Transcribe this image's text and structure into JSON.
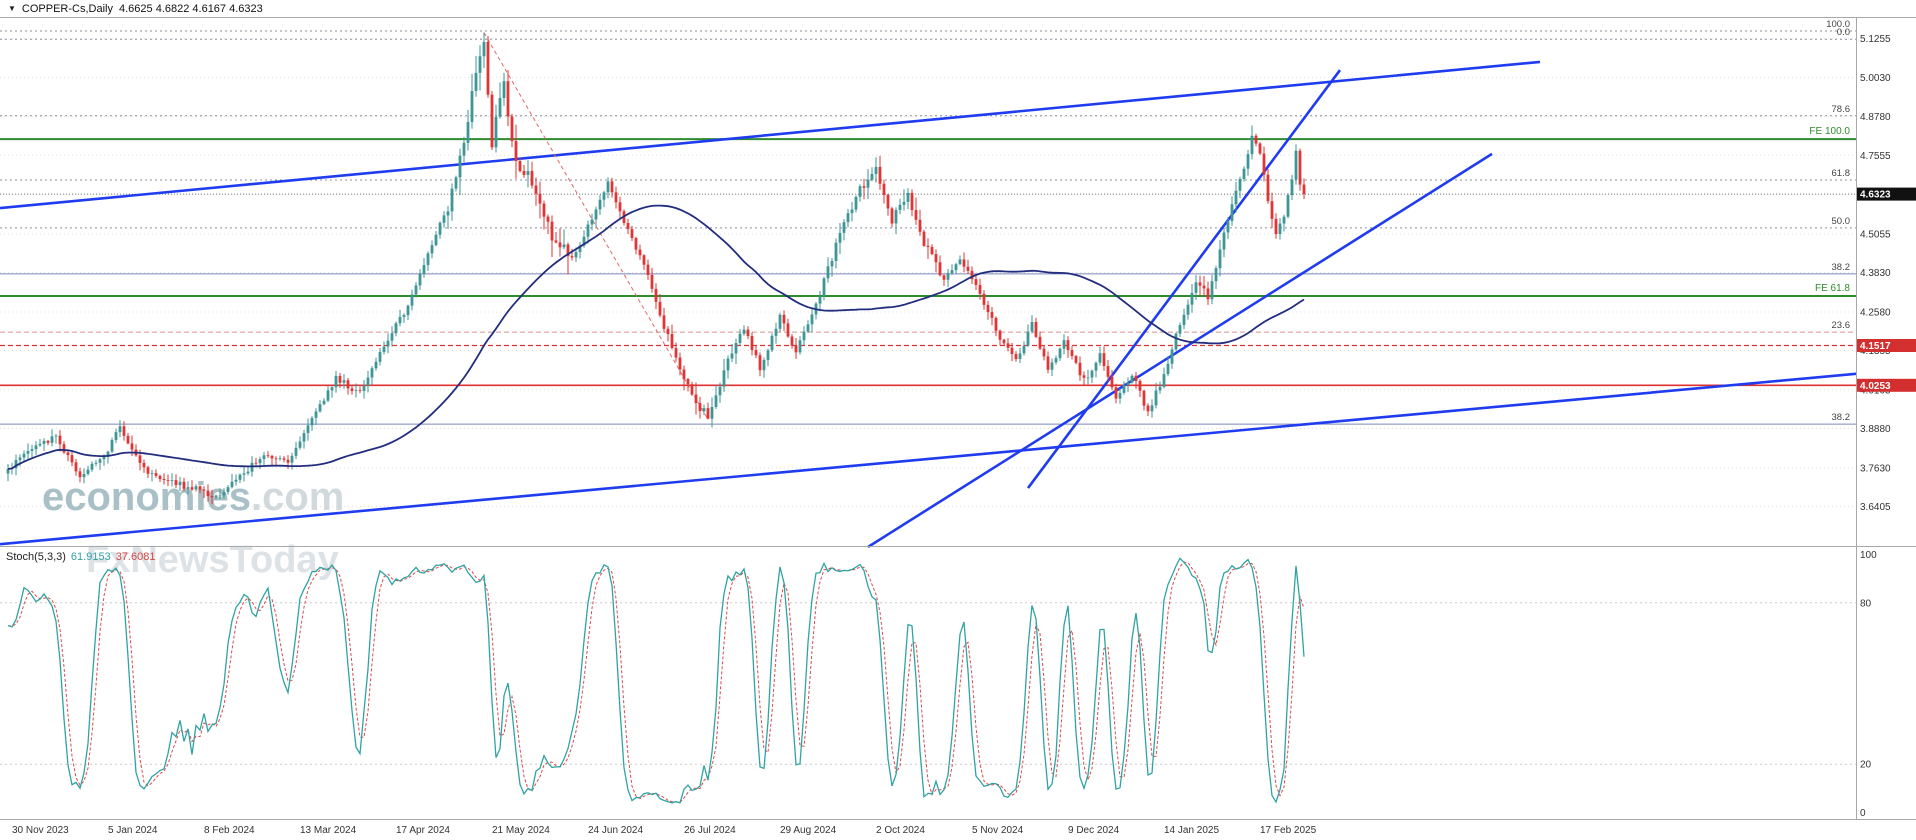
{
  "topbar": {
    "dropdown_icon": "▼",
    "symbol": "COPPER-Cs,Daily",
    "ohlc": "4.6625 4.6822 4.6167 4.6323"
  },
  "watermark": {
    "brand": "economies",
    "brand_suffix": ".com",
    "subbrand": "FxNewsToday"
  },
  "indicator_label": {
    "name": "Stoch(5,3,3)",
    "main_value": "61.9153",
    "signal_value": "37.6081"
  },
  "colors": {
    "candle_up": "#3f9696",
    "candle_down": "#e03535",
    "ma": "#232d7e",
    "trend": "#1f3cf0",
    "fib_trend": "#e06a6a",
    "green_level": "#2e8b2e",
    "red_level": "#e03030",
    "stoch_main": "#2fa3a3",
    "stoch_signal": "#e04848",
    "badge_black": "#111111",
    "badge_red": "#d32f2f",
    "grid": "#e0e0e0",
    "axis_text": "#333333",
    "separator": "#a8a8a8"
  },
  "chart_data": {
    "type": "candlestick",
    "symbol": "COPPER-Cs",
    "timeframe": "Daily",
    "last_quote": {
      "open": 4.6625,
      "high": 4.6822,
      "low": 4.6167,
      "close": 4.6323
    },
    "bars_total": 325,
    "price_axis": {
      "labels": [
        "5.1255",
        "5.0030",
        "4.8780",
        "4.7555",
        "4.6305",
        "4.5055",
        "4.3830",
        "4.2580",
        "4.1355",
        "4.0105",
        "3.8880",
        "3.7630",
        "3.6405"
      ],
      "min": 3.52,
      "max": 5.19
    },
    "time_axis": {
      "labels": [
        "30 Nov 2023",
        "5 Jan 2024",
        "8 Feb 2024",
        "13 Mar 2024",
        "17 Apr 2024",
        "21 May 2024",
        "24 Jun 2024",
        "26 Jul 2024",
        "29 Aug 2024",
        "2 Oct 2024",
        "5 Nov 2024",
        "9 Dec 2024",
        "14 Jan 2025",
        "17 Feb 2025"
      ],
      "label_bars": [
        1,
        25,
        49,
        73,
        97,
        121,
        145,
        169,
        193,
        217,
        241,
        265,
        289,
        313
      ]
    },
    "price_keypoints": [
      [
        0,
        3.76
      ],
      [
        6,
        3.82
      ],
      [
        12,
        3.86
      ],
      [
        18,
        3.74
      ],
      [
        24,
        3.8
      ],
      [
        28,
        3.89
      ],
      [
        34,
        3.76
      ],
      [
        40,
        3.72
      ],
      [
        46,
        3.7
      ],
      [
        52,
        3.67
      ],
      [
        58,
        3.74
      ],
      [
        64,
        3.8
      ],
      [
        70,
        3.78
      ],
      [
        76,
        3.92
      ],
      [
        82,
        4.05
      ],
      [
        88,
        4.0
      ],
      [
        94,
        4.15
      ],
      [
        100,
        4.28
      ],
      [
        106,
        4.48
      ],
      [
        110,
        4.6
      ],
      [
        114,
        4.8
      ],
      [
        117,
        5.02
      ],
      [
        119,
        5.13
      ],
      [
        121,
        4.8
      ],
      [
        124,
        4.97
      ],
      [
        127,
        4.75
      ],
      [
        131,
        4.66
      ],
      [
        136,
        4.5
      ],
      [
        141,
        4.43
      ],
      [
        146,
        4.55
      ],
      [
        150,
        4.67
      ],
      [
        155,
        4.52
      ],
      [
        160,
        4.38
      ],
      [
        165,
        4.18
      ],
      [
        169,
        4.05
      ],
      [
        172,
        3.97
      ],
      [
        175,
        3.93
      ],
      [
        180,
        4.1
      ],
      [
        184,
        4.21
      ],
      [
        188,
        4.08
      ],
      [
        193,
        4.24
      ],
      [
        197,
        4.13
      ],
      [
        203,
        4.32
      ],
      [
        208,
        4.5
      ],
      [
        213,
        4.65
      ],
      [
        217,
        4.71
      ],
      [
        221,
        4.55
      ],
      [
        225,
        4.63
      ],
      [
        229,
        4.47
      ],
      [
        234,
        4.36
      ],
      [
        238,
        4.43
      ],
      [
        243,
        4.31
      ],
      [
        248,
        4.18
      ],
      [
        252,
        4.1
      ],
      [
        256,
        4.22
      ],
      [
        260,
        4.07
      ],
      [
        264,
        4.16
      ],
      [
        269,
        4.04
      ],
      [
        273,
        4.12
      ],
      [
        277,
        3.99
      ],
      [
        281,
        4.06
      ],
      [
        285,
        3.94
      ],
      [
        289,
        4.06
      ],
      [
        293,
        4.22
      ],
      [
        297,
        4.36
      ],
      [
        300,
        4.31
      ],
      [
        304,
        4.5
      ],
      [
        308,
        4.68
      ],
      [
        311,
        4.81
      ],
      [
        313,
        4.77
      ],
      [
        315,
        4.6
      ],
      [
        317,
        4.5
      ],
      [
        319,
        4.56
      ],
      [
        321,
        4.69
      ],
      [
        322,
        4.77
      ],
      [
        323,
        4.6625
      ],
      [
        324,
        4.6323
      ]
    ],
    "forced_extremes": {
      "119": {
        "high": 5.1453
      },
      "175": {
        "low": 3.917
      },
      "285": {
        "low": 3.928
      },
      "311": {
        "high": 4.85
      },
      "322": {
        "high": 4.79
      },
      "324": {
        "high": 4.6822,
        "low": 4.6167
      }
    },
    "fib_levels": [
      {
        "label": "100.0",
        "price": 5.15,
        "stroke": "#8a8f9a",
        "dash": "2 3"
      },
      {
        "label": "0.0",
        "price": 5.124,
        "stroke": "#8a8f9a",
        "dash": "2 3"
      },
      {
        "label": "78.6",
        "price": 4.881,
        "stroke": "#8a8f9a",
        "dash": "2 3"
      },
      {
        "label": "61.8",
        "price": 4.677,
        "stroke": "#8a8f9a",
        "dash": "2 3"
      },
      {
        "label": "50.0",
        "price": 4.525,
        "stroke": "#8a8f9a",
        "dash": "2 3"
      },
      {
        "label": "38.2",
        "price": 4.379,
        "stroke": "#7b86bb",
        "dash": ""
      },
      {
        "label": "23.6",
        "price": 4.194,
        "stroke": "#d99090",
        "dash": "5 3"
      },
      {
        "label": "38.2",
        "price": 3.902,
        "stroke": "#7b86bb",
        "dash": ""
      }
    ],
    "expansion_levels": [
      {
        "label": "FE 100.0",
        "price": 4.807
      },
      {
        "label": "FE 61.8",
        "price": 4.309
      }
    ],
    "horizontal_lines": [
      {
        "badge": "4.1517",
        "price": 4.1517,
        "style": "dashed"
      },
      {
        "badge": "4.0253",
        "price": 4.0253,
        "style": "solid"
      }
    ],
    "current_price": 4.6323,
    "current_price_badge": "4.6323",
    "trendlines": [
      {
        "b1": -2,
        "p1": 4.588,
        "b2": 383,
        "p2": 5.052
      },
      {
        "b1": -2,
        "p1": 3.521,
        "b2": 463,
        "p2": 4.063
      },
      {
        "b1": 255,
        "p1": 3.699,
        "b2": 333,
        "p2": 5.026
      },
      {
        "b1": 215,
        "p1": 3.512,
        "b2": 371,
        "p2": 4.76
      }
    ],
    "fib_trendline": {
      "b1": 119,
      "p1": 5.145,
      "b2": 175,
      "p2": 3.917
    },
    "moving_average": {
      "period": 65
    },
    "stochastic": {
      "params": [
        5,
        3,
        3
      ],
      "levels": [
        80,
        20
      ],
      "range": [
        0,
        100
      ],
      "axis_labels": [
        "100",
        "80",
        "20",
        "0"
      ]
    }
  }
}
